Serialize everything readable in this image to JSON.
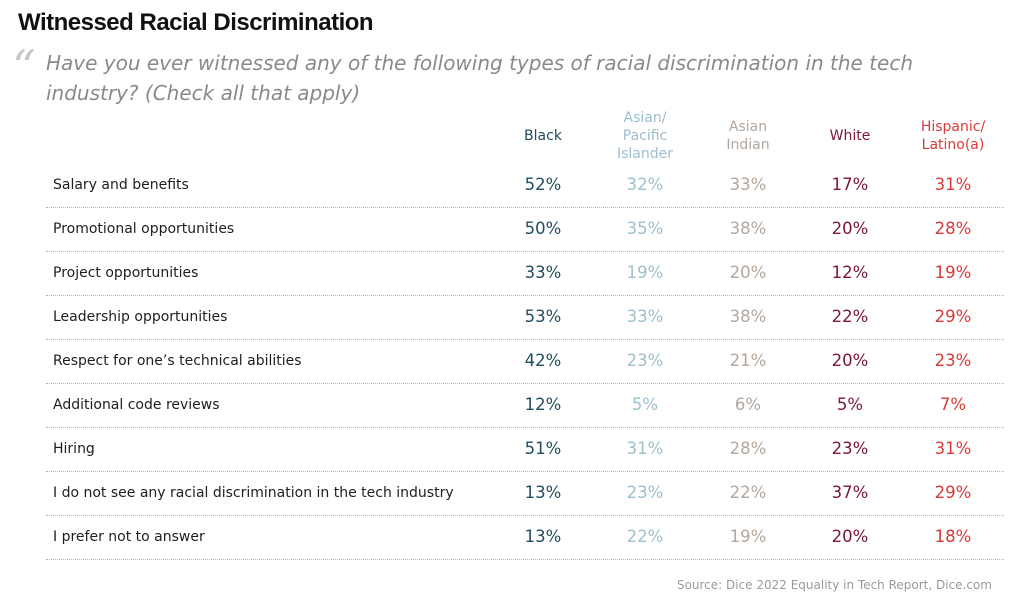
{
  "title": "Witnessed Racial Discrimination",
  "quote_icon": "open-quote-icon",
  "question": "Have you ever witnessed any of the following types of racial discrimination in the tech industry? (Check all that apply)",
  "source": "Source: Dice 2022 Equality in Tech Report, Dice.com",
  "chart_data": {
    "type": "table",
    "columns": [
      {
        "name": "Black",
        "color": "#234d5e"
      },
      {
        "name": "Asian/\nPacific\nIslander",
        "color": "#9cbfcc"
      },
      {
        "name": "Asian\nIndian",
        "color": "#b3a79d"
      },
      {
        "name": "White",
        "color": "#7a1737"
      },
      {
        "name": "Hispanic/\nLatino(a)",
        "color": "#d93a3a"
      }
    ],
    "rows": [
      {
        "label": "Salary and benefits",
        "values": [
          "52%",
          "32%",
          "33%",
          "17%",
          "31%"
        ]
      },
      {
        "label": "Promotional opportunities",
        "values": [
          "50%",
          "35%",
          "38%",
          "20%",
          "28%"
        ]
      },
      {
        "label": "Project opportunities",
        "values": [
          "33%",
          "19%",
          "20%",
          "12%",
          "19%"
        ]
      },
      {
        "label": "Leadership opportunities",
        "values": [
          "53%",
          "33%",
          "38%",
          "22%",
          "29%"
        ]
      },
      {
        "label": "Respect for one’s technical abilities",
        "values": [
          "42%",
          "23%",
          "21%",
          "20%",
          "23%"
        ]
      },
      {
        "label": "Additional code reviews",
        "values": [
          "12%",
          "5%",
          "6%",
          "5%",
          "7%"
        ]
      },
      {
        "label": "Hiring",
        "values": [
          "51%",
          "31%",
          "28%",
          "23%",
          "31%"
        ]
      },
      {
        "label": "I do not see any racial discrimination in the tech industry",
        "values": [
          "13%",
          "23%",
          "22%",
          "37%",
          "29%"
        ]
      },
      {
        "label": "I prefer not to answer",
        "values": [
          "13%",
          "22%",
          "19%",
          "20%",
          "18%"
        ]
      }
    ]
  }
}
